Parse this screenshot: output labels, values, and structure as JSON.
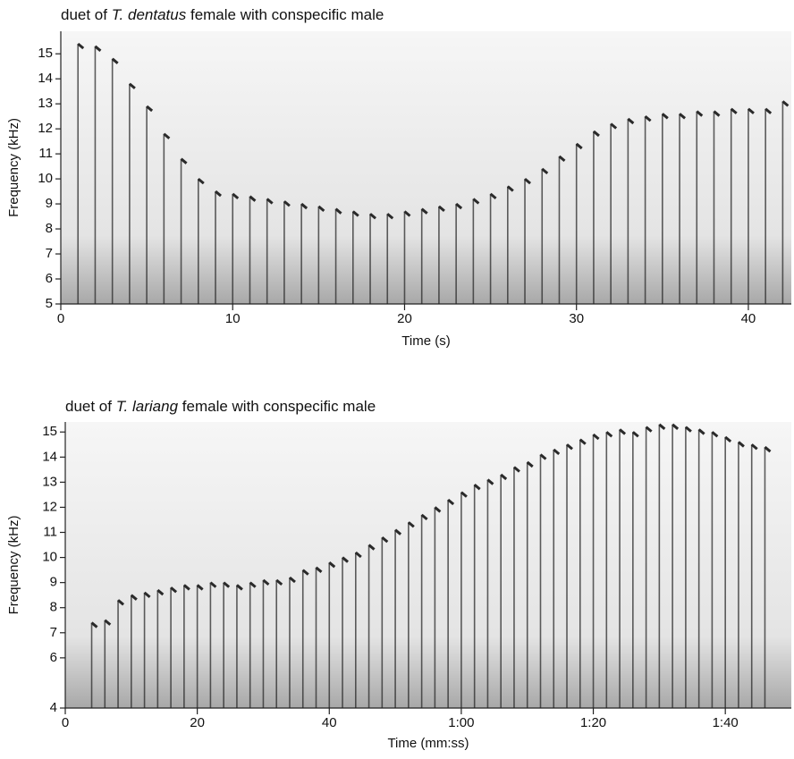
{
  "chart_data": [
    {
      "type": "spectrogram",
      "title": {
        "prefix": "duet of",
        "species": "T. dentatus",
        "suffix": "female with conspecific male"
      },
      "xlabel": "Time (s)",
      "ylabel": "Frequency (kHz)",
      "xlim": [
        0,
        42.5
      ],
      "ylim": [
        5,
        15.9
      ],
      "xticks": [
        0,
        10,
        20,
        30,
        40
      ],
      "yticks": [
        5,
        6,
        7,
        8,
        9,
        10,
        11,
        12,
        13,
        14,
        15
      ],
      "color": "#2a2a2a",
      "x": [
        1,
        2,
        3,
        4,
        5,
        6,
        7,
        8,
        9,
        10,
        11,
        12,
        13,
        14,
        15,
        16,
        17,
        18,
        19,
        20,
        21,
        22,
        23,
        24,
        25,
        26,
        27,
        28,
        29,
        30,
        31,
        32,
        33,
        34,
        35,
        36,
        37,
        38,
        39,
        40,
        41,
        42
      ],
      "values": [
        15.4,
        15.3,
        14.8,
        13.8,
        12.9,
        11.8,
        10.8,
        10.0,
        9.5,
        9.4,
        9.3,
        9.2,
        9.1,
        9.0,
        8.9,
        8.8,
        8.7,
        8.6,
        8.6,
        8.7,
        8.8,
        8.9,
        9.0,
        9.2,
        9.4,
        9.7,
        10.0,
        10.4,
        10.9,
        11.4,
        11.9,
        12.2,
        12.4,
        12.5,
        12.6,
        12.6,
        12.7,
        12.7,
        12.8,
        12.8,
        12.8,
        13.1
      ]
    },
    {
      "type": "spectrogram",
      "title": {
        "prefix": "duet of",
        "species": "T. lariang",
        "suffix": "female with conspecific male"
      },
      "xlabel": "Time (mm:ss)",
      "ylabel": "Frequency (kHz)",
      "xlim": [
        0,
        110
      ],
      "ylim": [
        4,
        15.4
      ],
      "xticks": [
        0,
        20,
        40,
        {
          "value": 60,
          "label": "1:00"
        },
        {
          "value": 80,
          "label": "1:20"
        },
        {
          "value": 100,
          "label": "1:40"
        }
      ],
      "yticks": [
        4,
        6,
        7,
        8,
        9,
        10,
        11,
        12,
        13,
        14,
        15
      ],
      "color": "#2a2a2a",
      "x": [
        4,
        6,
        8,
        10,
        12,
        14,
        16,
        18,
        20,
        22,
        24,
        26,
        28,
        30,
        32,
        34,
        36,
        38,
        40,
        42,
        44,
        46,
        48,
        50,
        52,
        54,
        56,
        58,
        60,
        62,
        64,
        66,
        68,
        70,
        72,
        74,
        76,
        78,
        80,
        82,
        84,
        86,
        88,
        90,
        92,
        94,
        96,
        98,
        100,
        102,
        104,
        106
      ],
      "values": [
        7.4,
        7.5,
        8.3,
        8.5,
        8.6,
        8.7,
        8.8,
        8.9,
        8.9,
        9.0,
        9.0,
        8.9,
        9.0,
        9.1,
        9.1,
        9.2,
        9.5,
        9.6,
        9.8,
        10.0,
        10.2,
        10.5,
        10.8,
        11.1,
        11.4,
        11.7,
        12.0,
        12.3,
        12.6,
        12.9,
        13.1,
        13.3,
        13.6,
        13.8,
        14.1,
        14.3,
        14.5,
        14.7,
        14.9,
        15.0,
        15.1,
        15.0,
        15.2,
        15.3,
        15.3,
        15.2,
        15.1,
        15.0,
        14.8,
        14.6,
        14.5,
        14.4
      ]
    }
  ]
}
